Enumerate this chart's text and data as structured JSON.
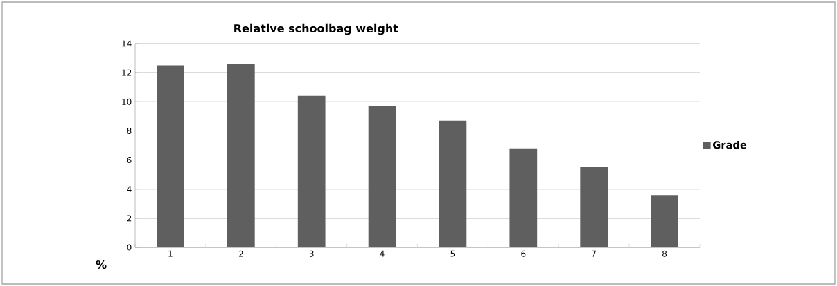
{
  "chart_data": {
    "type": "bar",
    "title": "Relative schoolbag weight",
    "ylabel": "%",
    "categories": [
      "1",
      "2",
      "3",
      "4",
      "5",
      "6",
      "7",
      "8"
    ],
    "series": [
      {
        "name": "Grade",
        "color": "#5f5f5f",
        "values": [
          12.5,
          12.6,
          10.4,
          9.7,
          8.7,
          6.8,
          5.5,
          3.6
        ]
      }
    ],
    "ylim": [
      0,
      14
    ],
    "yticks": [
      0,
      2,
      4,
      6,
      8,
      10,
      12,
      14
    ],
    "grid": "y",
    "legend": "right"
  }
}
